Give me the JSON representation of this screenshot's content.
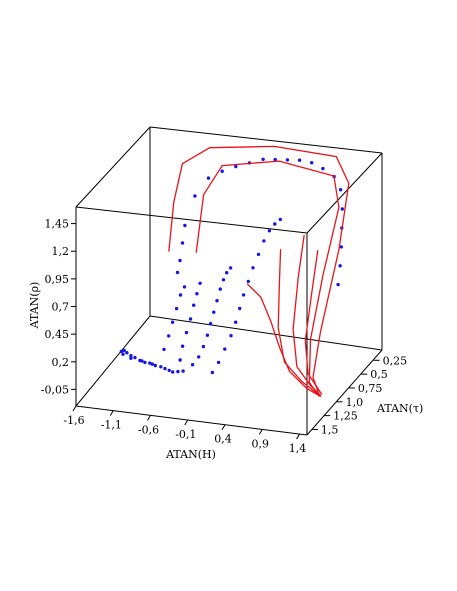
{
  "chart_data": {
    "type": "3d-scatter-line",
    "title": "",
    "xlabel": "ATAN(H)",
    "ylabel": "ATAN(τ)",
    "zlabel": "ATAN(ρ)",
    "x_ticks": [
      "-1,6",
      "-1,1",
      "-0,6",
      "-0,1",
      "0,4",
      "0,9",
      "1,4"
    ],
    "y_ticks": [
      "0,25",
      "0,5",
      "0,75",
      "1,0",
      "1,25",
      "1,5"
    ],
    "z_ticks": [
      "-0,05",
      "0,2",
      "0,45",
      "0,7",
      "0,95",
      "1,2",
      "1,45"
    ],
    "x_range": [
      -1.6,
      1.5
    ],
    "y_range": [
      0.1,
      1.6
    ],
    "z_range": [
      -0.2,
      1.6
    ],
    "series": [
      {
        "style": "points",
        "color": "#1515e8",
        "points": [
          [
            -1.52,
            0.8,
            -0.1
          ],
          [
            -1.45,
            0.85,
            -0.06
          ],
          [
            -1.38,
            0.9,
            -0.05
          ],
          [
            -1.3,
            0.94,
            -0.05
          ],
          [
            -1.22,
            0.98,
            -0.04
          ],
          [
            -1.14,
            1.0,
            -0.05
          ],
          [
            -1.06,
            1.02,
            -0.05
          ],
          [
            -0.98,
            1.04,
            -0.04
          ],
          [
            -0.9,
            1.05,
            -0.05
          ],
          [
            -0.82,
            1.06,
            -0.05
          ],
          [
            -0.75,
            1.08,
            -0.05
          ],
          [
            -0.68,
            1.1,
            -0.05
          ],
          [
            -0.62,
            1.12,
            -0.05
          ],
          [
            -0.55,
            1.12,
            -0.04
          ],
          [
            -0.48,
            1.12,
            -0.03
          ],
          [
            -1.4,
            0.95,
            -0.04
          ],
          [
            -1.26,
            1.0,
            -0.04
          ],
          [
            -1.1,
            1.02,
            -0.04
          ],
          [
            -0.94,
            1.05,
            -0.04
          ],
          [
            -0.4,
            1.05,
            0.0
          ],
          [
            -0.35,
            1.0,
            0.05
          ],
          [
            -0.32,
            0.95,
            0.12
          ],
          [
            -0.3,
            0.9,
            0.2
          ],
          [
            -0.29,
            0.85,
            0.28
          ],
          [
            -0.28,
            0.8,
            0.36
          ],
          [
            -0.27,
            0.75,
            0.44
          ],
          [
            -0.26,
            0.7,
            0.52
          ],
          [
            -0.25,
            0.65,
            0.58
          ],
          [
            -0.24,
            0.6,
            0.62
          ],
          [
            -0.22,
            0.55,
            0.64
          ],
          [
            -0.6,
            1.0,
            0.0
          ],
          [
            -0.6,
            0.95,
            0.1
          ],
          [
            -0.58,
            0.9,
            0.2
          ],
          [
            -0.56,
            0.85,
            0.3
          ],
          [
            -0.55,
            0.8,
            0.4
          ],
          [
            -0.54,
            0.75,
            0.48
          ],
          [
            -0.53,
            0.7,
            0.55
          ],
          [
            -0.85,
            0.95,
            0.05
          ],
          [
            -0.82,
            0.9,
            0.15
          ],
          [
            -0.8,
            0.85,
            0.25
          ],
          [
            -0.78,
            0.8,
            0.35
          ],
          [
            -0.76,
            0.75,
            0.45
          ],
          [
            -0.74,
            0.7,
            0.5
          ],
          [
            -0.1,
            1.1,
            -0.02
          ],
          [
            -0.05,
            1.05,
            0.05
          ],
          [
            0.0,
            1.0,
            0.15
          ],
          [
            0.05,
            0.95,
            0.25
          ],
          [
            0.08,
            0.9,
            0.35
          ],
          [
            0.1,
            0.85,
            0.45
          ],
          [
            0.12,
            0.8,
            0.55
          ],
          [
            0.15,
            0.75,
            0.65
          ],
          [
            0.18,
            0.7,
            0.75
          ],
          [
            0.22,
            0.65,
            0.85
          ],
          [
            0.26,
            0.6,
            0.95
          ],
          [
            0.3,
            0.55,
            1.02
          ],
          [
            0.34,
            0.5,
            1.06
          ],
          [
            0.38,
            0.45,
            1.08
          ],
          [
            -0.7,
            0.55,
            1.25
          ],
          [
            -0.55,
            0.5,
            1.4
          ],
          [
            -0.4,
            0.45,
            1.45
          ],
          [
            -0.25,
            0.4,
            1.48
          ],
          [
            -0.1,
            0.35,
            1.5
          ],
          [
            0.05,
            0.3,
            1.52
          ],
          [
            0.2,
            0.28,
            1.52
          ],
          [
            0.35,
            0.26,
            1.52
          ],
          [
            0.5,
            0.24,
            1.52
          ],
          [
            0.65,
            0.22,
            1.5
          ],
          [
            0.8,
            0.22,
            1.46
          ],
          [
            0.95,
            0.22,
            1.4
          ],
          [
            1.05,
            0.24,
            1.3
          ],
          [
            1.1,
            0.28,
            1.15
          ],
          [
            1.12,
            0.32,
            1.0
          ],
          [
            1.14,
            0.36,
            0.85
          ],
          [
            1.15,
            0.4,
            0.7
          ],
          [
            1.15,
            0.44,
            0.55
          ],
          [
            -0.8,
            0.6,
            1.0
          ],
          [
            -0.82,
            0.62,
            0.85
          ],
          [
            -0.84,
            0.64,
            0.7
          ],
          [
            -0.86,
            0.66,
            0.6
          ]
        ]
      },
      {
        "style": "lines",
        "color": "#e8141b",
        "lines": [
          [
            [
              -0.95,
              0.7,
              0.8
            ],
            [
              -0.95,
              0.6,
              1.2
            ],
            [
              -0.9,
              0.5,
              1.5
            ],
            [
              -0.6,
              0.4,
              1.62
            ],
            [
              0.2,
              0.3,
              1.65
            ],
            [
              1.0,
              0.25,
              1.6
            ],
            [
              1.2,
              0.3,
              1.4
            ],
            [
              1.2,
              0.5,
              0.9
            ],
            [
              1.15,
              0.8,
              0.3
            ],
            [
              1.25,
              1.1,
              0.05
            ],
            [
              1.4,
              1.2,
              -0.05
            ]
          ],
          [
            [
              -0.55,
              0.75,
              0.85
            ],
            [
              -0.55,
              0.6,
              1.3
            ],
            [
              -0.4,
              0.45,
              1.5
            ],
            [
              0.3,
              0.35,
              1.55
            ],
            [
              1.0,
              0.3,
              1.45
            ],
            [
              1.1,
              0.35,
              1.2
            ],
            [
              1.05,
              0.6,
              0.7
            ],
            [
              1.05,
              0.85,
              0.25
            ],
            [
              1.2,
              1.1,
              0.0
            ],
            [
              1.4,
              1.2,
              -0.06
            ]
          ],
          [
            [
              0.1,
              0.7,
              0.6
            ],
            [
              0.35,
              0.8,
              0.55
            ],
            [
              0.55,
              0.9,
              0.4
            ],
            [
              0.7,
              0.95,
              0.2
            ],
            [
              0.9,
              1.05,
              0.05
            ],
            [
              1.2,
              1.15,
              -0.03
            ],
            [
              1.42,
              1.2,
              -0.06
            ]
          ],
          [
            [
              0.55,
              0.7,
              0.95
            ],
            [
              0.6,
              0.8,
              0.7
            ],
            [
              0.65,
              0.9,
              0.35
            ],
            [
              0.8,
              1.0,
              0.1
            ],
            [
              1.1,
              1.1,
              0.0
            ],
            [
              1.4,
              1.2,
              -0.05
            ]
          ],
          [
            [
              0.8,
              0.6,
              1.05
            ],
            [
              0.82,
              0.75,
              0.75
            ],
            [
              0.85,
              0.9,
              0.35
            ],
            [
              1.0,
              1.05,
              0.1
            ],
            [
              1.25,
              1.15,
              0.0
            ],
            [
              1.42,
              1.2,
              -0.05
            ]
          ],
          [
            [
              0.95,
              0.55,
              0.9
            ],
            [
              0.97,
              0.7,
              0.6
            ],
            [
              1.0,
              0.88,
              0.25
            ],
            [
              1.15,
              1.05,
              0.05
            ],
            [
              1.42,
              1.18,
              -0.05
            ]
          ]
        ]
      }
    ]
  }
}
